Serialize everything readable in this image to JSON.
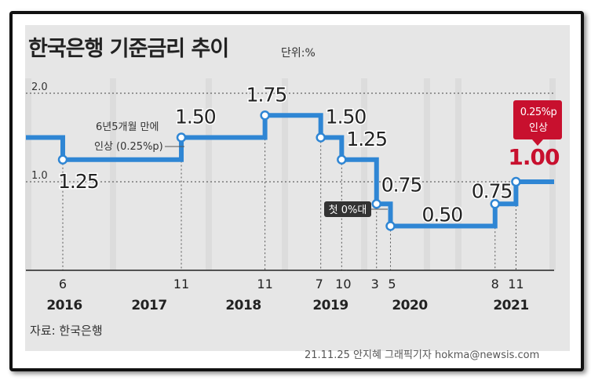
{
  "chart_data": {
    "type": "line",
    "step": true,
    "title": "한국은행 기준금리 추이",
    "unit_label": "단위:%",
    "source": "자료: 한국은행",
    "credit": "21.11.25 안지혜 그래픽기자 hokma@newsis.com",
    "ylim": [
      0,
      2.2
    ],
    "yticks": [
      {
        "value": 2.0,
        "label": "2.0"
      },
      {
        "value": 1.0,
        "label": "1.0"
      }
    ],
    "years": [
      "2016",
      "2017",
      "2018",
      "2019",
      "2020",
      "2021"
    ],
    "change_months": [
      {
        "month": "6",
        "date": "2016-06"
      },
      {
        "month": "11",
        "date": "2017-11"
      },
      {
        "month": "11",
        "date": "2018-11"
      },
      {
        "month": "7",
        "date": "2019-07"
      },
      {
        "month": "10",
        "date": "2019-10"
      },
      {
        "month": "3",
        "date": "2020-03"
      },
      {
        "month": "5",
        "date": "2020-05"
      },
      {
        "month": "8",
        "date": "2021-08"
      },
      {
        "month": "11",
        "date": "2021-11"
      }
    ],
    "points": [
      {
        "date": "2016-01",
        "value": 1.5,
        "label": ""
      },
      {
        "date": "2016-06",
        "value": 1.25,
        "label": "1.25"
      },
      {
        "date": "2017-11",
        "value": 1.5,
        "label": "1.50"
      },
      {
        "date": "2018-11",
        "value": 1.75,
        "label": "1.75"
      },
      {
        "date": "2019-07",
        "value": 1.5,
        "label": "1.50"
      },
      {
        "date": "2019-10",
        "value": 1.25,
        "label": "1.25"
      },
      {
        "date": "2020-03",
        "value": 0.75,
        "label": "0.75"
      },
      {
        "date": "2020-05",
        "value": 0.5,
        "label": "0.50"
      },
      {
        "date": "2021-08",
        "value": 0.75,
        "label": "0.75"
      },
      {
        "date": "2021-11",
        "value": 1.0,
        "label": "1.00"
      }
    ],
    "annotations": [
      {
        "text": [
          "6년5개월 만에",
          "인상 (0.25%p)"
        ]
      },
      {
        "text": [
          "첫 0%대"
        ]
      },
      {
        "text": [
          "0.25%p",
          "인상"
        ]
      }
    ],
    "colors": {
      "line": "#2f86d4",
      "highlight": "#c8102e",
      "panel": "#e6e6e6"
    }
  }
}
